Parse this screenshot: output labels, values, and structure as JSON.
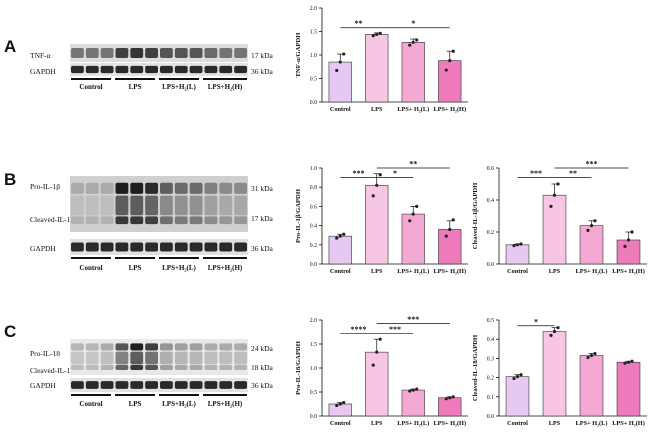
{
  "panels": {
    "A": {
      "letter": "A",
      "bands": [
        {
          "label": "TNF-α",
          "kda": "17 kDa"
        },
        {
          "label": "GAPDH",
          "kda": "36 kDa"
        }
      ],
      "groups": [
        "Control",
        "LPS",
        "LPS+H₂(L)",
        "LPS+H₂(H)"
      ]
    },
    "B": {
      "letter": "B",
      "bands": [
        {
          "label": "Pro-IL-1β",
          "kda": "31 kDa"
        },
        {
          "label": "Cleaved-IL-1β",
          "kda": "17 kDa"
        },
        {
          "label": "GAPDH",
          "kda": "36 kDa"
        }
      ],
      "groups": [
        "Control",
        "LPS",
        "LPS+H₂(L)",
        "LPS+H₂(H)"
      ]
    },
    "C": {
      "letter": "C",
      "bands": [
        {
          "label": "Pro-IL-18",
          "kda": "24 kDa"
        },
        {
          "label": "Cleaved-IL-18",
          "kda": "18 kDa"
        },
        {
          "label": "GAPDH",
          "kda": "36 kDa"
        }
      ],
      "groups": [
        "Control",
        "LPS",
        "LPS+H₂(L)",
        "LPS+H₂(H)"
      ]
    }
  },
  "colors": [
    "#e6c8f0",
    "#f6c6e4",
    "#f4a8d4",
    "#ee7cbc"
  ],
  "chart_data": [
    {
      "id": "tnf",
      "type": "bar",
      "categories": [
        "Control",
        "LPS",
        "LPS+ H₂(L)",
        "LPS+ H₂(H)"
      ],
      "values": [
        0.85,
        1.44,
        1.27,
        0.88
      ],
      "errors": [
        0.17,
        0.03,
        0.07,
        0.2
      ],
      "points": [
        [
          0.67,
          0.85,
          1.02
        ],
        [
          1.41,
          1.44,
          1.46
        ],
        [
          1.21,
          1.27,
          1.32
        ],
        [
          0.68,
          0.88,
          1.08
        ]
      ],
      "ylabel": "TNF-α/GAPDH",
      "ylim": [
        0,
        2.0
      ],
      "yticks": [
        "0.0",
        "0.5",
        "1.0",
        "1.5",
        "2.0"
      ],
      "ytick_values": [
        0,
        0.5,
        1.0,
        1.5,
        2.0
      ],
      "sig": [
        {
          "from": 0,
          "to": 1,
          "label": "**",
          "level": 1.58
        },
        {
          "from": 1,
          "to": 3,
          "label": "*",
          "level": 1.58
        }
      ]
    },
    {
      "id": "pro-il1b",
      "type": "bar",
      "categories": [
        "Control",
        "LPS",
        "LPS+ H₂(L)",
        "LPS+ H₂(H)"
      ],
      "values": [
        0.29,
        0.82,
        0.52,
        0.36
      ],
      "errors": [
        0.02,
        0.12,
        0.08,
        0.09
      ],
      "points": [
        [
          0.27,
          0.29,
          0.31
        ],
        [
          0.71,
          0.82,
          0.93
        ],
        [
          0.45,
          0.52,
          0.6
        ],
        [
          0.29,
          0.36,
          0.46
        ]
      ],
      "ylabel": "Pro-IL-1β/GAPDH",
      "ylim": [
        0,
        1.0
      ],
      "yticks": [
        "0.0",
        "0.2",
        "0.4",
        "0.6",
        "0.8",
        "1.0"
      ],
      "ytick_values": [
        0,
        0.2,
        0.4,
        0.6,
        0.8,
        1.0
      ],
      "sig": [
        {
          "from": 0,
          "to": 1,
          "label": "***",
          "level": 0.9
        },
        {
          "from": 1,
          "to": 2,
          "label": "*",
          "level": 0.9
        },
        {
          "from": 1,
          "to": 3,
          "label": "**",
          "level": 1.0
        }
      ]
    },
    {
      "id": "cleaved-il1b",
      "type": "bar",
      "categories": [
        "Control",
        "LPS",
        "LPS+ H₂(L)",
        "LPS+ H₂(H)"
      ],
      "values": [
        0.12,
        0.43,
        0.24,
        0.15
      ],
      "errors": [
        0.005,
        0.07,
        0.03,
        0.05
      ],
      "points": [
        [
          0.115,
          0.12,
          0.125
        ],
        [
          0.36,
          0.43,
          0.5
        ],
        [
          0.21,
          0.24,
          0.27
        ],
        [
          0.11,
          0.15,
          0.2
        ]
      ],
      "ylabel": "Cleaved-IL-1β/GAPDH",
      "ylim": [
        0,
        0.6
      ],
      "yticks": [
        "0.0",
        "0.2",
        "0.4",
        "0.6"
      ],
      "ytick_values": [
        0,
        0.2,
        0.4,
        0.6
      ],
      "sig": [
        {
          "from": 0,
          "to": 1,
          "label": "***",
          "level": 0.54
        },
        {
          "from": 1,
          "to": 2,
          "label": "**",
          "level": 0.54
        },
        {
          "from": 1,
          "to": 3,
          "label": "***",
          "level": 0.6
        }
      ]
    },
    {
      "id": "pro-il18",
      "type": "bar",
      "categories": [
        "Control",
        "LPS",
        "LPS+ H₂(L)",
        "LPS+ H₂(H)"
      ],
      "values": [
        0.25,
        1.33,
        0.54,
        0.38
      ],
      "errors": [
        0.03,
        0.27,
        0.02,
        0.02
      ],
      "points": [
        [
          0.22,
          0.25,
          0.28
        ],
        [
          1.06,
          1.33,
          1.6
        ],
        [
          0.52,
          0.54,
          0.56
        ],
        [
          0.36,
          0.38,
          0.4
        ]
      ],
      "ylabel": "Pro-IL-18/GAPDH",
      "ylim": [
        0,
        2.0
      ],
      "yticks": [
        "0.0",
        "0.5",
        "1.0",
        "1.5",
        "2.0"
      ],
      "ytick_values": [
        0,
        0.5,
        1.0,
        1.5,
        2.0
      ],
      "sig": [
        {
          "from": 0,
          "to": 1,
          "label": "****",
          "level": 1.72
        },
        {
          "from": 1,
          "to": 2,
          "label": "***",
          "level": 1.72
        },
        {
          "from": 1,
          "to": 3,
          "label": "***",
          "level": 1.93
        }
      ]
    },
    {
      "id": "cleaved-il18",
      "type": "bar",
      "categories": [
        "Control",
        "LPS",
        "LPS+ H₂(L)",
        "LPS+ H₂(H)"
      ],
      "values": [
        0.205,
        0.44,
        0.315,
        0.28
      ],
      "errors": [
        0.01,
        0.02,
        0.01,
        0.005
      ],
      "points": [
        [
          0.195,
          0.205,
          0.215
        ],
        [
          0.42,
          0.44,
          0.46
        ],
        [
          0.305,
          0.315,
          0.325
        ],
        [
          0.275,
          0.28,
          0.285
        ]
      ],
      "ylabel": "Cleaved-IL-18/GAPDH",
      "ylim": [
        0,
        0.5
      ],
      "yticks": [
        "0.0",
        "0.1",
        "0.2",
        "0.3",
        "0.4",
        "0.5"
      ],
      "ytick_values": [
        0,
        0.1,
        0.2,
        0.3,
        0.4,
        0.5
      ],
      "sig": [
        {
          "from": 0,
          "to": 1,
          "label": "*",
          "level": 0.47
        }
      ]
    }
  ]
}
